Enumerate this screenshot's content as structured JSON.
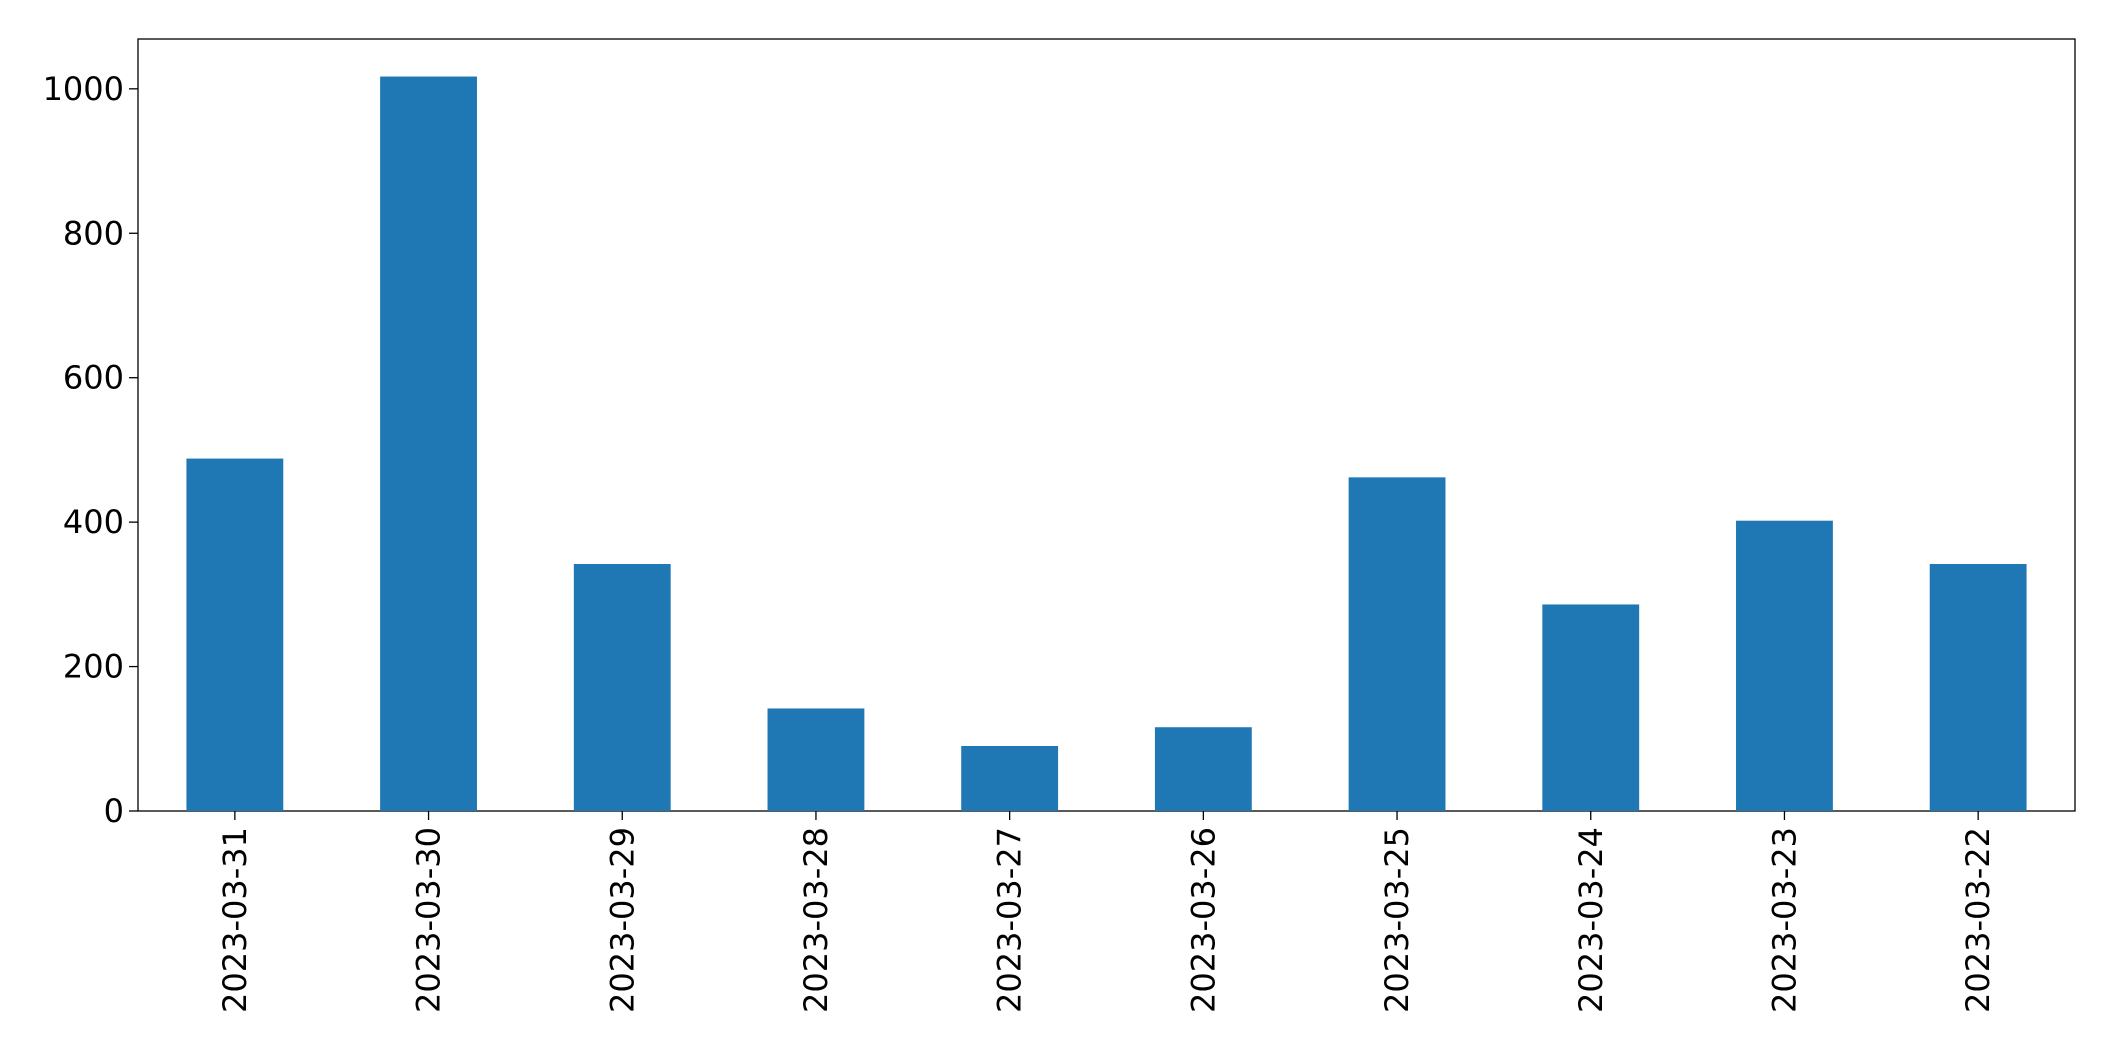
{
  "chart_data": {
    "type": "bar",
    "categories": [
      "2023-03-31",
      "2023-03-30",
      "2023-03-29",
      "2023-03-28",
      "2023-03-27",
      "2023-03-26",
      "2023-03-25",
      "2023-03-24",
      "2023-03-23",
      "2023-03-22"
    ],
    "values": [
      488,
      1017,
      342,
      142,
      90,
      116,
      462,
      286,
      402,
      342
    ],
    "color": "#1f77b4",
    "ylim": [
      0,
      1069
    ],
    "yticks": [
      0,
      200,
      400,
      600,
      800,
      1000
    ],
    "grid": false
  }
}
